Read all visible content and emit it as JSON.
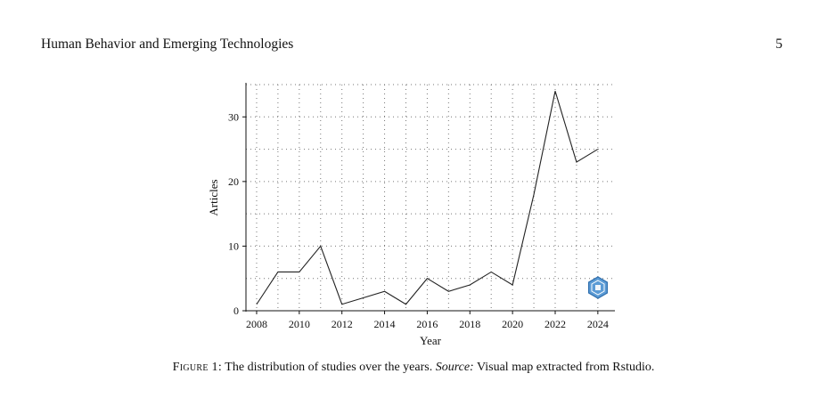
{
  "header": {
    "running_title": "Human Behavior and Emerging Technologies",
    "page_number": "5"
  },
  "figure": {
    "label": "Figure 1:",
    "caption_text": "The distribution of studies over the years.",
    "source_label": "Source:",
    "source_text": "Visual map extracted from Rstudio."
  },
  "chart_data": {
    "type": "line",
    "xlabel": "Year",
    "ylabel": "Articles",
    "x": [
      2008,
      2009,
      2010,
      2011,
      2012,
      2013,
      2014,
      2015,
      2016,
      2017,
      2018,
      2019,
      2020,
      2021,
      2022,
      2023,
      2024
    ],
    "series": [
      {
        "values": [
          1,
          6,
          6,
          10,
          1,
          2,
          3,
          1,
          5,
          3,
          4,
          6,
          4,
          18,
          34,
          23,
          25
        ]
      }
    ],
    "xticks": [
      2008,
      2010,
      2012,
      2014,
      2016,
      2018,
      2020,
      2022,
      2024
    ],
    "yticks": [
      0,
      10,
      20,
      30
    ],
    "xlim": [
      2007.5,
      2024.8
    ],
    "ylim": [
      0,
      35
    ],
    "grid": true,
    "line_color": "#222222",
    "watermark_icon": "rstudio-hex-logo-icon"
  }
}
